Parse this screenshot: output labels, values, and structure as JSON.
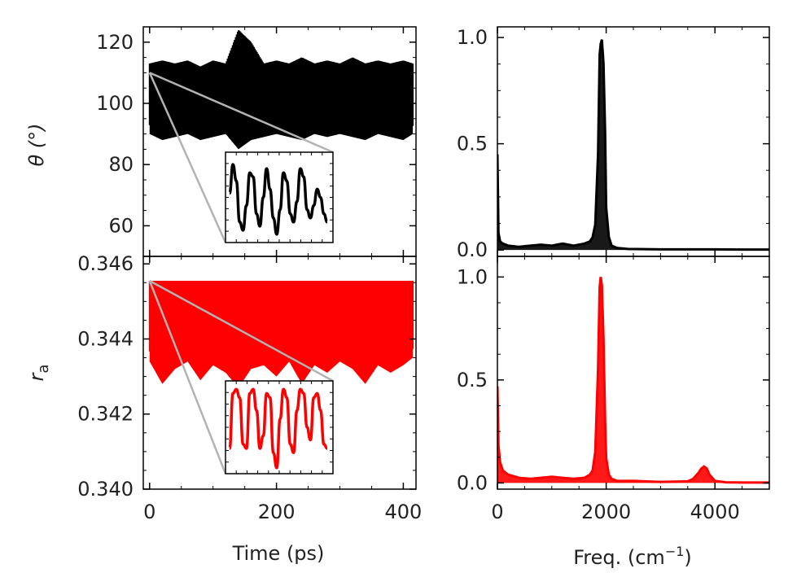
{
  "chart_data": [
    {
      "id": "theta_time",
      "type": "line",
      "ylabel": "θ (°)",
      "ylim": [
        50,
        125
      ],
      "xlim": [
        -10,
        420
      ],
      "yticks": [
        60,
        80,
        100,
        120
      ],
      "ytick_labels": [
        "60",
        "80",
        "100",
        "120"
      ],
      "xticks": [
        0,
        200,
        400
      ],
      "xtick_labels": [],
      "series_color": "#000000",
      "series": [
        {
          "x": [
            0,
            20,
            40,
            60,
            80,
            100,
            120,
            140,
            160,
            180,
            200,
            220,
            240,
            260,
            280,
            300,
            320,
            340,
            360,
            380,
            400,
            415
          ],
          "y_center": [
            101,
            102,
            101,
            102,
            101,
            100,
            102,
            101,
            101,
            102,
            101,
            101,
            102,
            101,
            100,
            101,
            102,
            101,
            101,
            102,
            101,
            101
          ],
          "y_min": [
            90,
            88,
            89,
            90,
            88,
            89,
            90,
            85,
            88,
            89,
            90,
            89,
            88,
            90,
            89,
            90,
            89,
            88,
            90,
            89,
            88,
            90
          ],
          "y_max": [
            113,
            114,
            113,
            114,
            112,
            114,
            113,
            124,
            120,
            113,
            114,
            113,
            115,
            113,
            114,
            113,
            115,
            113,
            114,
            113,
            114,
            113
          ]
        }
      ],
      "inset": {
        "y": [
          0.55,
          0.9,
          0.7,
          0.2,
          0.1,
          0.4,
          0.8,
          0.75,
          0.3,
          0.15,
          0.5,
          0.85,
          0.6,
          0.25,
          0.05,
          0.35,
          0.8,
          0.7,
          0.3,
          0.2,
          0.45,
          0.85,
          0.75,
          0.35,
          0.25,
          0.4,
          0.6,
          0.5,
          0.3,
          0.2
        ]
      }
    },
    {
      "id": "theta_freq",
      "type": "line",
      "ylim": [
        -0.03,
        1.05
      ],
      "xlim": [
        0,
        5000
      ],
      "yticks": [
        0.0,
        0.5,
        1.0
      ],
      "ytick_labels": [
        "0.0",
        "0.5",
        "1.0"
      ],
      "xticks": [
        0,
        2000,
        4000
      ],
      "xtick_labels": [],
      "series_color": "#000000",
      "series": [
        {
          "x": [
            0,
            20,
            50,
            100,
            200,
            400,
            600,
            800,
            1000,
            1200,
            1400,
            1600,
            1700,
            1750,
            1800,
            1850,
            1880,
            1900,
            1920,
            1950,
            1980,
            2000,
            2050,
            2100,
            2200,
            2400,
            3000,
            3500,
            4000,
            4500,
            5000
          ],
          "y": [
            0.45,
            0.08,
            0.04,
            0.03,
            0.02,
            0.015,
            0.02,
            0.025,
            0.02,
            0.03,
            0.02,
            0.03,
            0.04,
            0.06,
            0.12,
            0.45,
            0.92,
            0.97,
            0.99,
            0.88,
            0.55,
            0.2,
            0.06,
            0.02,
            0.01,
            0.005,
            0.003,
            0.003,
            0.003,
            0.002,
            0.002
          ]
        }
      ]
    },
    {
      "id": "ra_time",
      "type": "line",
      "ylabel": "r_a",
      "ylabel_main": "r",
      "ylabel_sub": "a",
      "ylim": [
        0.34,
        0.3462
      ],
      "xlim": [
        -10,
        420
      ],
      "yticks": [
        0.34,
        0.342,
        0.344,
        0.346
      ],
      "ytick_labels": [
        "0.340",
        "0.342",
        "0.344",
        "0.346"
      ],
      "xticks": [
        0,
        200,
        400
      ],
      "xtick_labels": [
        "0",
        "200",
        "400"
      ],
      "xlabel": "Time (ps)",
      "series_color": "#ff0000",
      "series": [
        {
          "x": [
            0,
            20,
            40,
            60,
            80,
            100,
            120,
            140,
            160,
            180,
            200,
            220,
            240,
            260,
            280,
            300,
            320,
            340,
            360,
            380,
            400,
            415
          ],
          "y_max": [
            0.34555,
            0.34555,
            0.34555,
            0.34555,
            0.34555,
            0.34555,
            0.34555,
            0.34555,
            0.34555,
            0.34555,
            0.34555,
            0.34555,
            0.34555,
            0.34555,
            0.34555,
            0.34555,
            0.34555,
            0.34555,
            0.34555,
            0.34555,
            0.34555,
            0.34555
          ],
          "y_min": [
            0.3434,
            0.3428,
            0.3432,
            0.3434,
            0.3429,
            0.3433,
            0.3431,
            0.3427,
            0.3432,
            0.3433,
            0.343,
            0.3434,
            0.3428,
            0.3433,
            0.3431,
            0.3434,
            0.3432,
            0.3428,
            0.3433,
            0.3431,
            0.3433,
            0.3435
          ]
        }
      ],
      "inset": {
        "y": [
          0.25,
          0.9,
          0.95,
          0.85,
          0.3,
          0.25,
          0.9,
          0.95,
          0.7,
          0.25,
          0.4,
          0.9,
          0.85,
          0.2,
          0.02,
          0.6,
          0.95,
          0.85,
          0.3,
          0.2,
          0.7,
          0.95,
          0.9,
          0.5,
          0.35,
          0.85,
          0.9,
          0.7,
          0.3,
          0.25
        ]
      }
    },
    {
      "id": "ra_freq",
      "type": "line",
      "ylim": [
        -0.03,
        1.1
      ],
      "xlim": [
        0,
        5000
      ],
      "yticks": [
        0.0,
        0.5,
        1.0
      ],
      "ytick_labels": [
        "0.0",
        "0.5",
        "1.0"
      ],
      "xticks": [
        0,
        2000,
        4000
      ],
      "xtick_labels": [
        "0",
        "2000",
        "4000"
      ],
      "xlabel": "Freq. (cm⁻¹)",
      "xlabel_main": "Freq. (cm",
      "xlabel_sup": "−1",
      "xlabel_end": ")",
      "series_color": "#ff0000",
      "series": [
        {
          "x": [
            0,
            20,
            50,
            100,
            150,
            200,
            400,
            600,
            800,
            1000,
            1200,
            1400,
            1600,
            1700,
            1750,
            1800,
            1850,
            1880,
            1900,
            1920,
            1950,
            1980,
            2000,
            2050,
            2100,
            2200,
            2500,
            3000,
            3500,
            3600,
            3700,
            3750,
            3800,
            3850,
            3900,
            4000,
            4200,
            4500,
            5000
          ],
          "y": [
            0.47,
            0.18,
            0.1,
            0.06,
            0.05,
            0.04,
            0.025,
            0.02,
            0.025,
            0.03,
            0.025,
            0.02,
            0.025,
            0.04,
            0.06,
            0.15,
            0.55,
            0.95,
            1.0,
            0.96,
            0.7,
            0.3,
            0.12,
            0.04,
            0.02,
            0.01,
            0.01,
            0.005,
            0.008,
            0.02,
            0.05,
            0.07,
            0.08,
            0.07,
            0.04,
            0.01,
            0.003,
            0.002,
            0.002
          ]
        }
      ]
    }
  ]
}
